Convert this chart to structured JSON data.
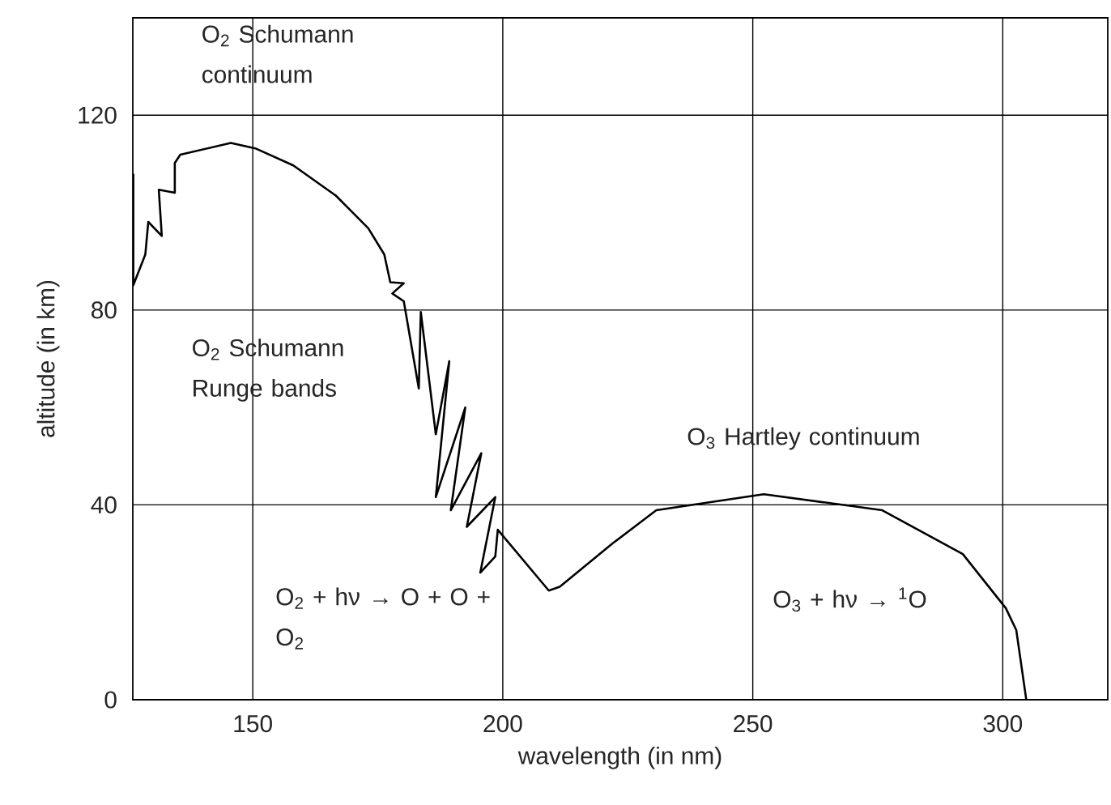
{
  "chart_data": {
    "type": "line",
    "xlabel": "wavelength (in nm)",
    "ylabel": "altitude (in km)",
    "xlim": [
      126,
      321
    ],
    "ylim": [
      0,
      140
    ],
    "xticks": [
      150,
      200,
      250,
      300
    ],
    "yticks": [
      0,
      40,
      80,
      120
    ],
    "grid": true,
    "annotations": [
      "O$_{2}$ Schumann continuum",
      "O$_{2}$ Schumann Runge bands",
      "O$_{2}$ + hν → O + O + O$_{2}$",
      "O$_{3}$ Hartley continuum",
      "O$_{3}$ + hν → $^{1}$O"
    ],
    "series": [
      {
        "color": "#000000",
        "x": [
          126.1,
          126.1,
          128.5,
          129.1,
          131.8,
          131.2,
          134.4,
          134.4,
          135.5,
          145.6,
          150.5,
          158.1,
          166.6,
          173.1,
          176.3,
          177.5,
          180.2,
          177.9,
          180.2,
          183.2,
          183.6,
          186.6,
          189.3,
          186.6,
          192.5,
          189.6,
          195.7,
          192.8,
          198.5,
          195.5,
          198.5,
          199.0,
          209.2,
          211.4,
          222.1,
          230.7,
          252.2,
          275.9,
          292.0,
          300.6,
          302.7,
          304.7
        ],
        "values": [
          108.0,
          85.1,
          91.4,
          98.1,
          95.2,
          104.7,
          104.1,
          110.2,
          111.9,
          114.3,
          113.2,
          109.7,
          103.5,
          96.8,
          91.4,
          85.7,
          85.5,
          83.4,
          81.8,
          63.9,
          79.6,
          54.5,
          69.5,
          41.6,
          60.0,
          38.9,
          50.6,
          35.5,
          41.6,
          26.1,
          29.4,
          34.9,
          22.4,
          23.2,
          32.2,
          38.9,
          42.2,
          38.9,
          29.9,
          18.8,
          14.3,
          0
        ]
      }
    ]
  }
}
